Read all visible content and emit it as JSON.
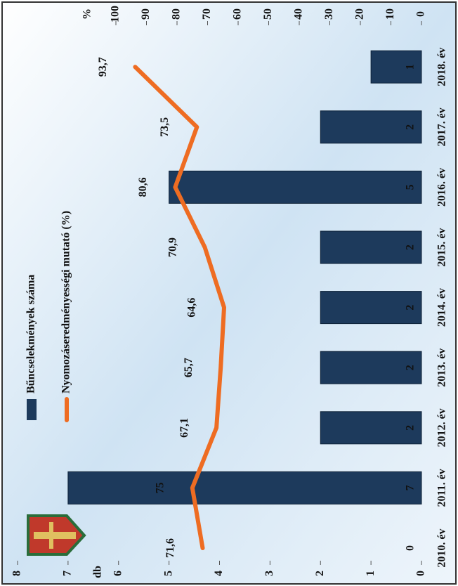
{
  "chart_data": {
    "type": "bar",
    "categories": [
      "2010. év",
      "2011. év",
      "2012. év",
      "2013. év",
      "2014. év",
      "2015. év",
      "2016. év",
      "2017. év",
      "2018. év"
    ],
    "series": [
      {
        "name": "Bűncselekmények száma",
        "type": "bar",
        "color": "#1d3a5c",
        "values": [
          0,
          7,
          2,
          2,
          2,
          2,
          5,
          2,
          1
        ]
      },
      {
        "name": "Nyomozáseredményességi mutató (%)",
        "type": "line",
        "axis": "y2",
        "color": "#ee6c22",
        "values": [
          71.6,
          75,
          67.1,
          65.7,
          64.6,
          70.9,
          80.6,
          73.5,
          93.7
        ],
        "value_labels": [
          "71,6",
          "75",
          "67,1",
          "65,7",
          "64,6",
          "70,9",
          "80,6",
          "73,5",
          "93,7"
        ]
      }
    ],
    "ylabel": "db",
    "y2label": "%",
    "ylim": [
      0,
      8
    ],
    "yticks": [
      0,
      1,
      2,
      3,
      4,
      5,
      6,
      7,
      8
    ],
    "y2lim": [
      0,
      100
    ],
    "y2ticks": [
      0,
      10,
      20,
      30,
      40,
      50,
      60,
      70,
      80,
      90,
      100
    ],
    "rotation": -90
  }
}
